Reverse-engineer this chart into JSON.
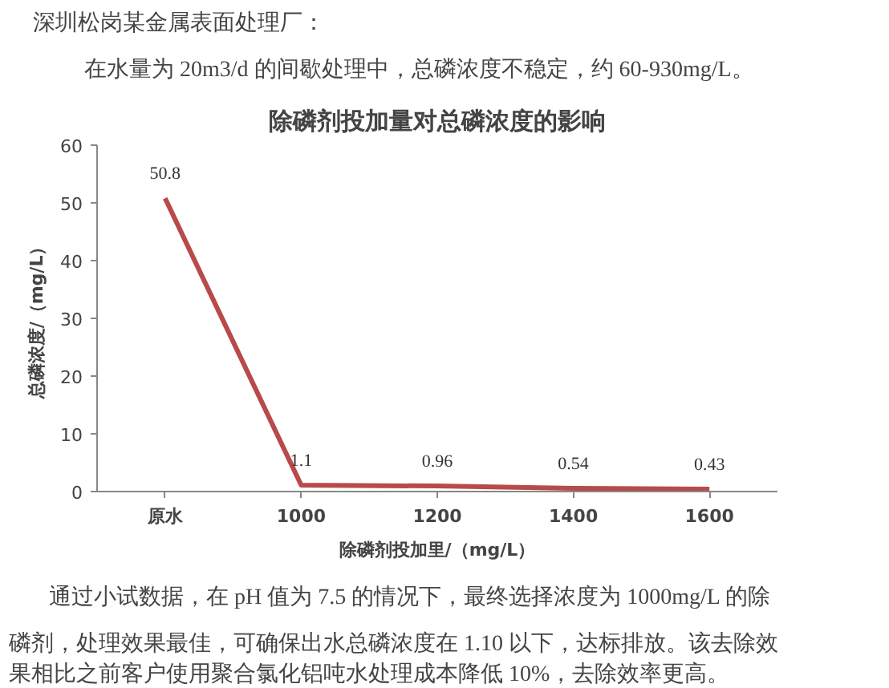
{
  "chart_data": {
    "type": "line",
    "title": "除磷剂投加量对总磷浓度的影响",
    "xlabel": "除磷剂投加里/（mg/L）",
    "ylabel": "总磷浓度/（mg/L）",
    "categories": [
      "原水",
      "1000",
      "1200",
      "1400",
      "1600"
    ],
    "series": [
      {
        "color": "#b94a4a",
        "values": [
          50.8,
          1.1,
          0.96,
          0.54,
          0.43
        ]
      }
    ],
    "ylim": [
      0,
      60
    ],
    "yticks": [
      0,
      10,
      20,
      30,
      40,
      50,
      60
    ],
    "data_labels": true,
    "grid": false,
    "marker": "none",
    "line_style": "solid",
    "annotations": [
      "深圳松岗某金属表面处理厂：",
      "在水量为 20m3/d 的间歇处理中，总磷浓度不稳定，约 60-930mg/L。",
      "通过小试数据，在 pH 值为 7.5 的情况下，最终选择浓度为 1000mg/L 的除",
      "磷剂，处理效果最佳，可确保出水总磷浓度在 1.10 以下，达标排放。该去除效",
      "果相比之前客户使用聚合氯化铝吨水处理成本降低 10%，去除效率更高。"
    ]
  }
}
